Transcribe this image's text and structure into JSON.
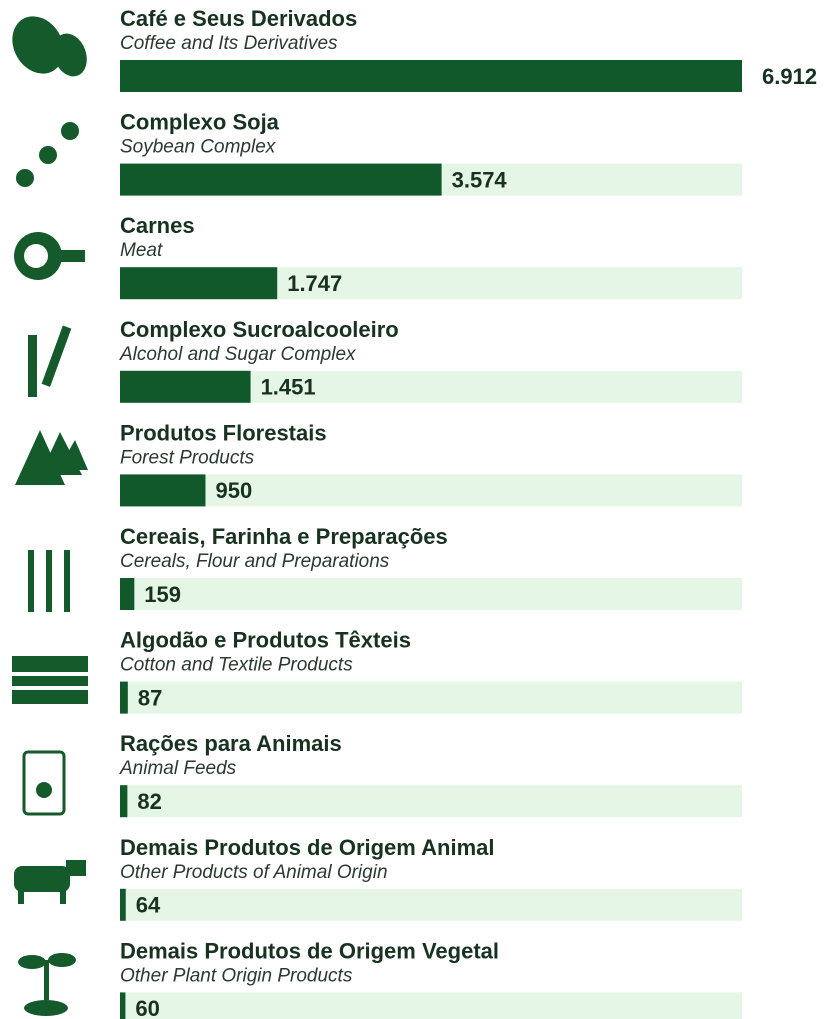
{
  "chart_data": {
    "type": "bar",
    "categories": [
      "Café e Seus Derivados",
      "Complexo Soja",
      "Carnes",
      "Complexo Sucroalcooleiro",
      "Produtos Florestais",
      "Cereais, Farinha e Preparações",
      "Algodão e Produtos Têxteis",
      "Rações para Animais",
      "Demais Produtos de Origem Animal",
      "Demais Produtos de Origem Vegetal"
    ],
    "categories_en": [
      "Coffee and Its Derivatives",
      "Soybean Complex",
      "Meat",
      "Alcohol and Sugar Complex",
      "Forest Products",
      "Cereals, Flour and Preparations",
      "Cotton and Textile Products",
      "Animal Feeds",
      "Other Products of Animal Origin",
      "Other Plant Origin Products"
    ],
    "values": [
      6912,
      3574,
      1747,
      1451,
      950,
      159,
      87,
      82,
      64,
      60
    ],
    "value_labels": [
      "6.912",
      "3.574",
      "1.747",
      "1.451",
      "950",
      "159",
      "87",
      "82",
      "64",
      "60"
    ],
    "xlim": [
      0,
      6912
    ],
    "color": "#11592a",
    "track_color": "#e5f5e6"
  }
}
